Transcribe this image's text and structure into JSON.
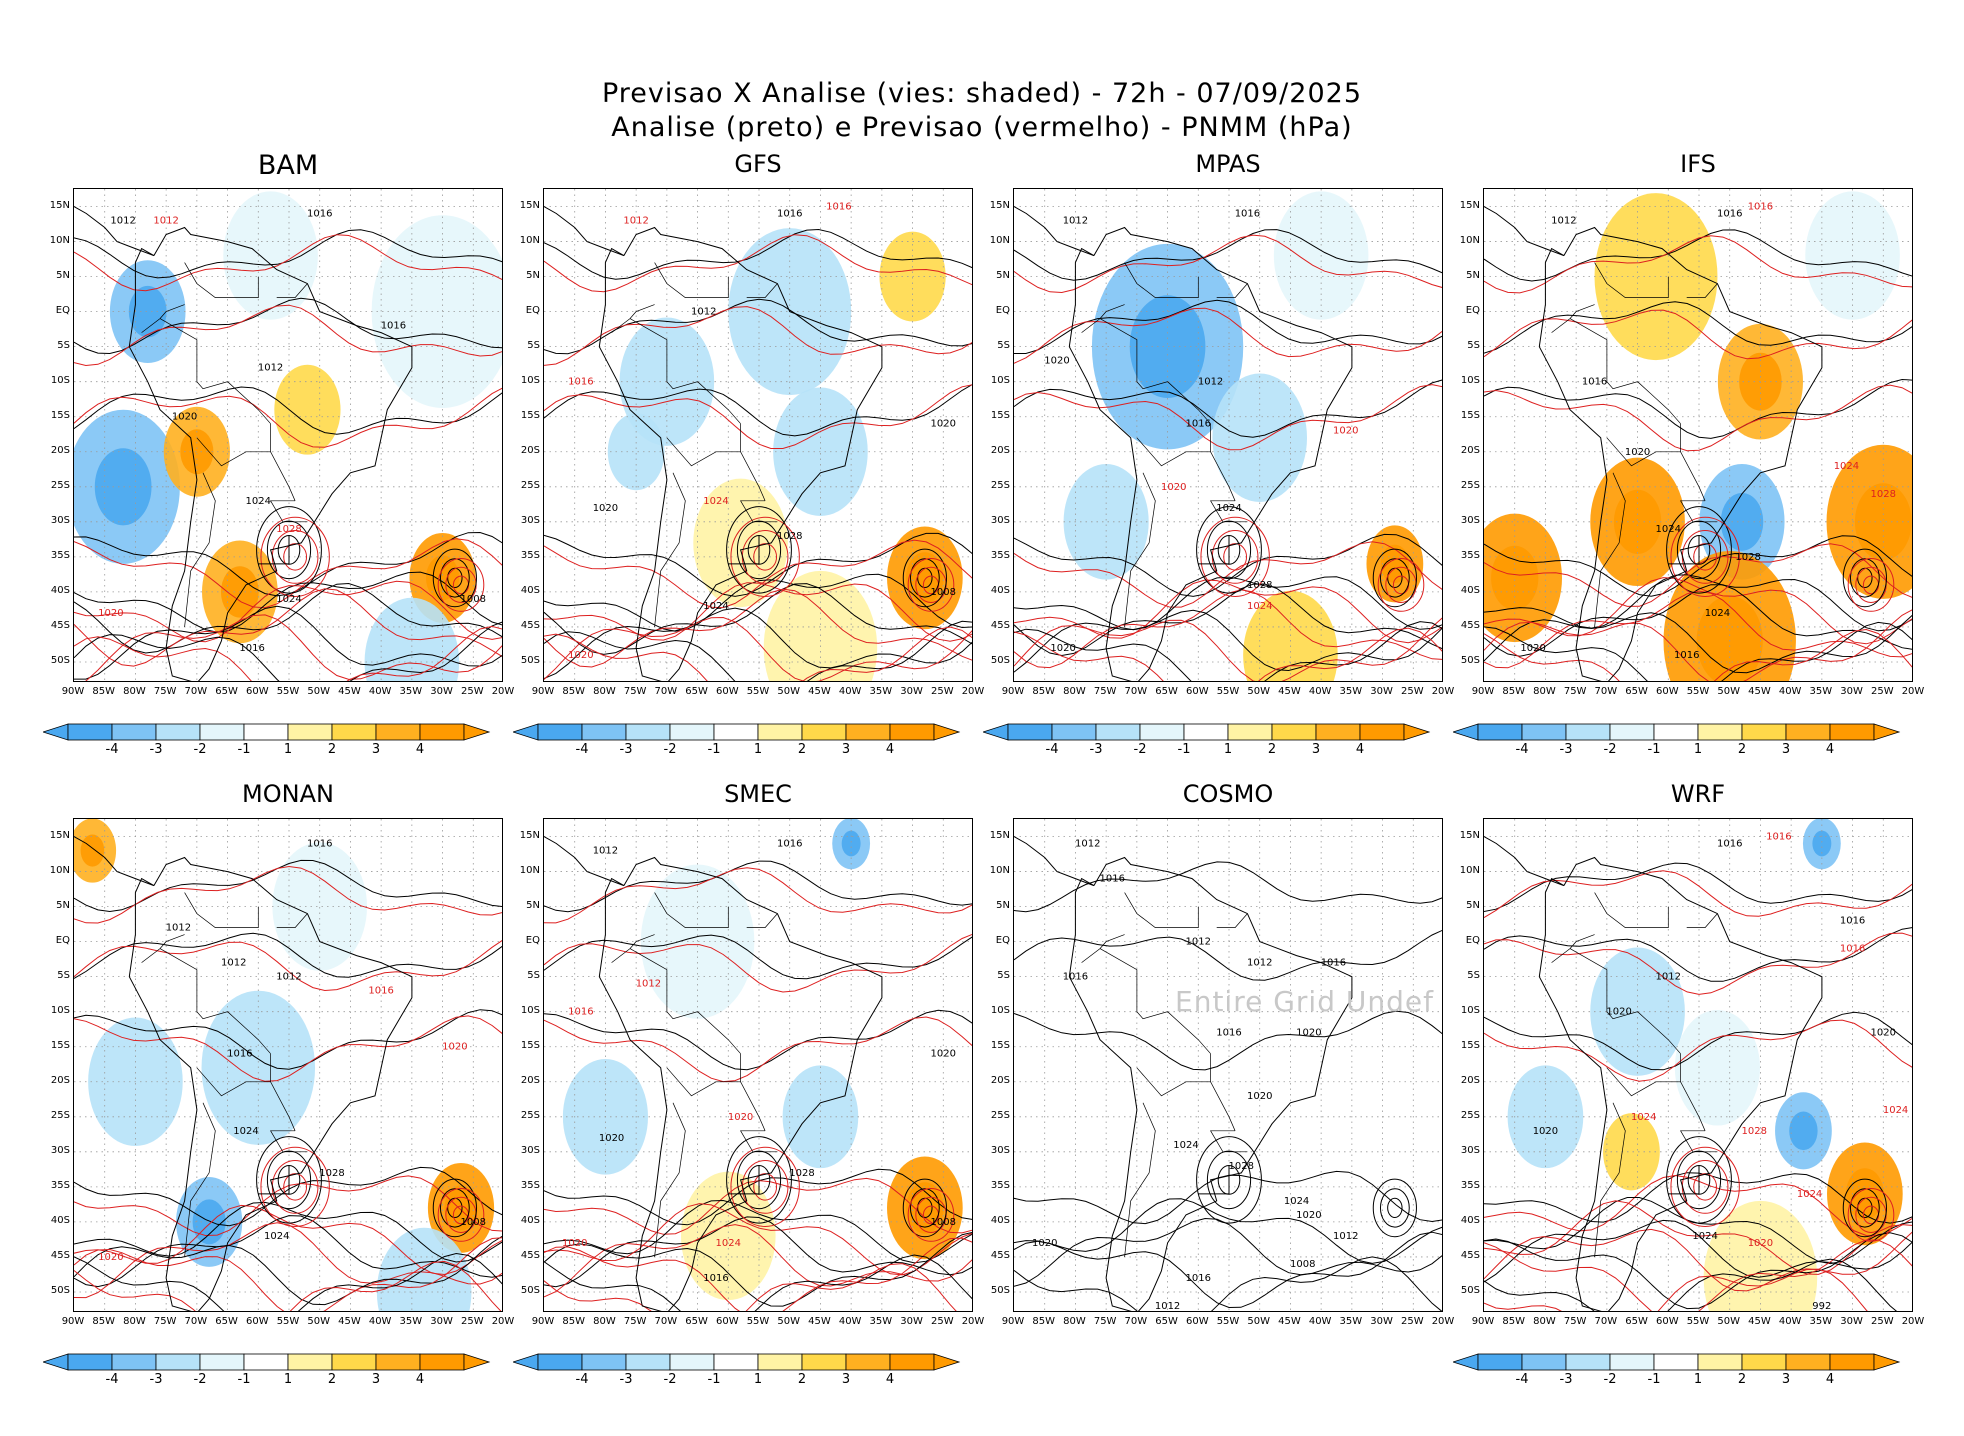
{
  "figure": {
    "title_line1": "Previsao X Analise (vies: shaded) - 72h - 07/09/2025",
    "title_line2": "Analise (preto) e Previsao (vermelho) - PNMM (hPa)"
  },
  "axes": {
    "lat_labels": [
      "15N",
      "10N",
      "5N",
      "EQ",
      "5S",
      "10S",
      "15S",
      "20S",
      "25S",
      "30S",
      "35S",
      "40S",
      "45S",
      "50S"
    ],
    "lon_labels": [
      "90W",
      "85W",
      "80W",
      "75W",
      "70W",
      "65W",
      "60W",
      "55W",
      "50W",
      "45W",
      "40W",
      "35W",
      "30W",
      "25W",
      "20W"
    ]
  },
  "colorbar": {
    "ticks": [
      "-4",
      "-3",
      "-2",
      "-1",
      "1",
      "2",
      "3",
      "4"
    ],
    "colors": [
      "#4aa8f0",
      "#7ec3f5",
      "#b6e2f8",
      "#e4f6fb",
      "#ffffff",
      "#fff3a5",
      "#ffd94a",
      "#ffb020",
      "#ff9a00"
    ]
  },
  "line_colors": {
    "analysis": "#000000",
    "forecast": "#dd2020"
  },
  "undef_text": "Entire Grid Undef",
  "panels": [
    {
      "name": "BAM",
      "has_shading": true,
      "blobs": [
        {
          "lon": -82,
          "lat": -25,
          "r": 0.12,
          "level": -3
        },
        {
          "lon": -78,
          "lat": 0,
          "r": 0.08,
          "level": -3
        },
        {
          "lon": -58,
          "lat": 8,
          "r": 0.1,
          "level": -1
        },
        {
          "lon": -30,
          "lat": 0,
          "r": 0.15,
          "level": -1
        },
        {
          "lon": -70,
          "lat": -20,
          "r": 0.07,
          "level": 3
        },
        {
          "lon": -52,
          "lat": -14,
          "r": 0.07,
          "level": 2
        },
        {
          "lon": -63,
          "lat": -40,
          "r": 0.08,
          "level": 3
        },
        {
          "lon": -30,
          "lat": -38,
          "r": 0.07,
          "level": 4
        },
        {
          "lon": -35,
          "lat": -50,
          "r": 0.1,
          "level": -2
        }
      ],
      "labels": [
        {
          "lon": -82,
          "lat": 13,
          "text": "1012",
          "line": "analysis"
        },
        {
          "lon": -75,
          "lat": 13,
          "text": "1012",
          "line": "forecast"
        },
        {
          "lon": -50,
          "lat": 14,
          "text": "1016",
          "line": "analysis"
        },
        {
          "lon": -58,
          "lat": -8,
          "text": "1012",
          "line": "analysis"
        },
        {
          "lon": -72,
          "lat": -15,
          "text": "1020",
          "line": "analysis"
        },
        {
          "lon": -60,
          "lat": -27,
          "text": "1024",
          "line": "analysis"
        },
        {
          "lon": -55,
          "lat": -31,
          "text": "1028",
          "line": "forecast"
        },
        {
          "lon": -55,
          "lat": -41,
          "text": "1024",
          "line": "analysis"
        },
        {
          "lon": -61,
          "lat": -48,
          "text": "1016",
          "line": "analysis"
        },
        {
          "lon": -84,
          "lat": -43,
          "text": "1020",
          "line": "forecast"
        },
        {
          "lon": -25,
          "lat": -41,
          "text": "1008",
          "line": "analysis"
        },
        {
          "lon": -38,
          "lat": -2,
          "text": "1016",
          "line": "analysis"
        }
      ]
    },
    {
      "name": "GFS",
      "has_shading": true,
      "blobs": [
        {
          "lon": -70,
          "lat": -10,
          "r": 0.1,
          "level": -2
        },
        {
          "lon": -50,
          "lat": 0,
          "r": 0.13,
          "level": -2
        },
        {
          "lon": -45,
          "lat": -20,
          "r": 0.1,
          "level": -2
        },
        {
          "lon": -75,
          "lat": -20,
          "r": 0.06,
          "level": -2
        },
        {
          "lon": -30,
          "lat": 5,
          "r": 0.07,
          "level": 2
        },
        {
          "lon": -58,
          "lat": -33,
          "r": 0.1,
          "level": 1
        },
        {
          "lon": -28,
          "lat": -38,
          "r": 0.08,
          "level": 4
        },
        {
          "lon": -45,
          "lat": -48,
          "r": 0.12,
          "level": 1
        }
      ],
      "labels": [
        {
          "lon": -75,
          "lat": 13,
          "text": "1012",
          "line": "forecast"
        },
        {
          "lon": -50,
          "lat": 14,
          "text": "1016",
          "line": "analysis"
        },
        {
          "lon": -42,
          "lat": 15,
          "text": "1016",
          "line": "forecast"
        },
        {
          "lon": -64,
          "lat": 0,
          "text": "1012",
          "line": "analysis"
        },
        {
          "lon": -84,
          "lat": -10,
          "text": "1016",
          "line": "forecast"
        },
        {
          "lon": -80,
          "lat": -28,
          "text": "1020",
          "line": "analysis"
        },
        {
          "lon": -62,
          "lat": -27,
          "text": "1024",
          "line": "forecast"
        },
        {
          "lon": -50,
          "lat": -32,
          "text": "1028",
          "line": "analysis"
        },
        {
          "lon": -62,
          "lat": -42,
          "text": "1024",
          "line": "analysis"
        },
        {
          "lon": -25,
          "lat": -40,
          "text": "1008",
          "line": "analysis"
        },
        {
          "lon": -25,
          "lat": -16,
          "text": "1020",
          "line": "analysis"
        },
        {
          "lon": -84,
          "lat": -49,
          "text": "1020",
          "line": "forecast"
        }
      ]
    },
    {
      "name": "MPAS",
      "has_shading": true,
      "blobs": [
        {
          "lon": -65,
          "lat": -5,
          "r": 0.16,
          "level": -3
        },
        {
          "lon": -50,
          "lat": -18,
          "r": 0.1,
          "level": -2
        },
        {
          "lon": -75,
          "lat": -30,
          "r": 0.09,
          "level": -2
        },
        {
          "lon": -40,
          "lat": 8,
          "r": 0.1,
          "level": -1
        },
        {
          "lon": -28,
          "lat": -36,
          "r": 0.06,
          "level": 4
        },
        {
          "lon": -45,
          "lat": -49,
          "r": 0.1,
          "level": 2
        }
      ],
      "labels": [
        {
          "lon": -80,
          "lat": 13,
          "text": "1012",
          "line": "analysis"
        },
        {
          "lon": -52,
          "lat": 14,
          "text": "1016",
          "line": "analysis"
        },
        {
          "lon": -83,
          "lat": -7,
          "text": "1020",
          "line": "analysis"
        },
        {
          "lon": -58,
          "lat": -10,
          "text": "1012",
          "line": "analysis"
        },
        {
          "lon": -60,
          "lat": -16,
          "text": "1016",
          "line": "analysis"
        },
        {
          "lon": -64,
          "lat": -25,
          "text": "1020",
          "line": "forecast"
        },
        {
          "lon": -55,
          "lat": -28,
          "text": "1024",
          "line": "analysis"
        },
        {
          "lon": -50,
          "lat": -39,
          "text": "1028",
          "line": "analysis"
        },
        {
          "lon": -50,
          "lat": -42,
          "text": "1024",
          "line": "forecast"
        },
        {
          "lon": -36,
          "lat": -17,
          "text": "1020",
          "line": "forecast"
        },
        {
          "lon": -82,
          "lat": -48,
          "text": "1020",
          "line": "analysis"
        }
      ]
    },
    {
      "name": "IFS",
      "has_shading": true,
      "blobs": [
        {
          "lon": -62,
          "lat": 5,
          "r": 0.13,
          "level": 2
        },
        {
          "lon": -45,
          "lat": -10,
          "r": 0.09,
          "level": 3
        },
        {
          "lon": -65,
          "lat": -30,
          "r": 0.1,
          "level": 4
        },
        {
          "lon": -85,
          "lat": -38,
          "r": 0.1,
          "level": 4
        },
        {
          "lon": -48,
          "lat": -30,
          "r": 0.09,
          "level": -3
        },
        {
          "lon": -25,
          "lat": -30,
          "r": 0.12,
          "level": 4
        },
        {
          "lon": -50,
          "lat": -47,
          "r": 0.14,
          "level": 4
        },
        {
          "lon": -30,
          "lat": 8,
          "r": 0.1,
          "level": -1
        }
      ],
      "labels": [
        {
          "lon": -77,
          "lat": 13,
          "text": "1012",
          "line": "analysis"
        },
        {
          "lon": -50,
          "lat": 14,
          "text": "1016",
          "line": "analysis"
        },
        {
          "lon": -45,
          "lat": 15,
          "text": "1016",
          "line": "forecast"
        },
        {
          "lon": -72,
          "lat": -10,
          "text": "1016",
          "line": "analysis"
        },
        {
          "lon": -65,
          "lat": -20,
          "text": "1020",
          "line": "analysis"
        },
        {
          "lon": -60,
          "lat": -31,
          "text": "1024",
          "line": "analysis"
        },
        {
          "lon": -47,
          "lat": -35,
          "text": "1028",
          "line": "analysis"
        },
        {
          "lon": -25,
          "lat": -26,
          "text": "1028",
          "line": "forecast"
        },
        {
          "lon": -31,
          "lat": -22,
          "text": "1024",
          "line": "forecast"
        },
        {
          "lon": -52,
          "lat": -43,
          "text": "1024",
          "line": "analysis"
        },
        {
          "lon": -57,
          "lat": -49,
          "text": "1016",
          "line": "analysis"
        },
        {
          "lon": -82,
          "lat": -48,
          "text": "1020",
          "line": "analysis"
        }
      ]
    },
    {
      "name": "MONAN",
      "has_shading": true,
      "blobs": [
        {
          "lon": -80,
          "lat": -20,
          "r": 0.1,
          "level": -2
        },
        {
          "lon": -60,
          "lat": -18,
          "r": 0.12,
          "level": -2
        },
        {
          "lon": -68,
          "lat": -40,
          "r": 0.07,
          "level": -3
        },
        {
          "lon": -87,
          "lat": 13,
          "r": 0.05,
          "level": 3
        },
        {
          "lon": -27,
          "lat": -38,
          "r": 0.07,
          "level": 4
        },
        {
          "lon": -33,
          "lat": -50,
          "r": 0.1,
          "level": -2
        },
        {
          "lon": -50,
          "lat": 5,
          "r": 0.1,
          "level": -1
        }
      ],
      "labels": [
        {
          "lon": -50,
          "lat": 14,
          "text": "1016",
          "line": "analysis"
        },
        {
          "lon": -73,
          "lat": 2,
          "text": "1012",
          "line": "analysis"
        },
        {
          "lon": -64,
          "lat": -3,
          "text": "1012",
          "line": "analysis"
        },
        {
          "lon": -55,
          "lat": -5,
          "text": "1012",
          "line": "analysis"
        },
        {
          "lon": -40,
          "lat": -7,
          "text": "1016",
          "line": "forecast"
        },
        {
          "lon": -63,
          "lat": -16,
          "text": "1016",
          "line": "analysis"
        },
        {
          "lon": -62,
          "lat": -27,
          "text": "1024",
          "line": "analysis"
        },
        {
          "lon": -48,
          "lat": -33,
          "text": "1028",
          "line": "analysis"
        },
        {
          "lon": -57,
          "lat": -42,
          "text": "1024",
          "line": "analysis"
        },
        {
          "lon": -84,
          "lat": -45,
          "text": "1020",
          "line": "forecast"
        },
        {
          "lon": -25,
          "lat": -40,
          "text": "1008",
          "line": "analysis"
        },
        {
          "lon": -28,
          "lat": -15,
          "text": "1020",
          "line": "forecast"
        }
      ]
    },
    {
      "name": "SMEC",
      "has_shading": true,
      "blobs": [
        {
          "lon": -65,
          "lat": 0,
          "r": 0.12,
          "level": -1
        },
        {
          "lon": -80,
          "lat": -25,
          "r": 0.09,
          "level": -2
        },
        {
          "lon": -45,
          "lat": -25,
          "r": 0.08,
          "level": -2
        },
        {
          "lon": -28,
          "lat": -38,
          "r": 0.08,
          "level": 4
        },
        {
          "lon": -60,
          "lat": -42,
          "r": 0.1,
          "level": 1
        },
        {
          "lon": -40,
          "lat": 14,
          "r": 0.04,
          "level": -3
        }
      ],
      "labels": [
        {
          "lon": -80,
          "lat": 13,
          "text": "1012",
          "line": "analysis"
        },
        {
          "lon": -50,
          "lat": 14,
          "text": "1016",
          "line": "analysis"
        },
        {
          "lon": -73,
          "lat": -6,
          "text": "1012",
          "line": "forecast"
        },
        {
          "lon": -84,
          "lat": -10,
          "text": "1016",
          "line": "forecast"
        },
        {
          "lon": -79,
          "lat": -28,
          "text": "1020",
          "line": "analysis"
        },
        {
          "lon": -58,
          "lat": -25,
          "text": "1020",
          "line": "forecast"
        },
        {
          "lon": -48,
          "lat": -33,
          "text": "1028",
          "line": "analysis"
        },
        {
          "lon": -60,
          "lat": -43,
          "text": "1024",
          "line": "forecast"
        },
        {
          "lon": -62,
          "lat": -48,
          "text": "1016",
          "line": "analysis"
        },
        {
          "lon": -25,
          "lat": -40,
          "text": "1008",
          "line": "analysis"
        },
        {
          "lon": -25,
          "lat": -16,
          "text": "1020",
          "line": "analysis"
        },
        {
          "lon": -85,
          "lat": -43,
          "text": "1020",
          "line": "forecast"
        }
      ]
    },
    {
      "name": "COSMO",
      "has_shading": false,
      "blobs": [],
      "labels": [
        {
          "lon": -78,
          "lat": 14,
          "text": "1012",
          "line": "analysis"
        },
        {
          "lon": -74,
          "lat": 9,
          "text": "1016",
          "line": "analysis"
        },
        {
          "lon": -60,
          "lat": 0,
          "text": "1012",
          "line": "analysis"
        },
        {
          "lon": -50,
          "lat": -3,
          "text": "1012",
          "line": "analysis"
        },
        {
          "lon": -38,
          "lat": -3,
          "text": "1016",
          "line": "analysis"
        },
        {
          "lon": -80,
          "lat": -5,
          "text": "1016",
          "line": "analysis"
        },
        {
          "lon": -55,
          "lat": -13,
          "text": "1016",
          "line": "analysis"
        },
        {
          "lon": -42,
          "lat": -13,
          "text": "1020",
          "line": "analysis"
        },
        {
          "lon": -50,
          "lat": -22,
          "text": "1020",
          "line": "analysis"
        },
        {
          "lon": -62,
          "lat": -29,
          "text": "1024",
          "line": "analysis"
        },
        {
          "lon": -53,
          "lat": -32,
          "text": "1028",
          "line": "analysis"
        },
        {
          "lon": -44,
          "lat": -37,
          "text": "1024",
          "line": "analysis"
        },
        {
          "lon": -42,
          "lat": -39,
          "text": "1020",
          "line": "analysis"
        },
        {
          "lon": -36,
          "lat": -42,
          "text": "1012",
          "line": "analysis"
        },
        {
          "lon": -43,
          "lat": -46,
          "text": "1008",
          "line": "analysis"
        },
        {
          "lon": -60,
          "lat": -48,
          "text": "1016",
          "line": "analysis"
        },
        {
          "lon": -85,
          "lat": -43,
          "text": "1020",
          "line": "analysis"
        },
        {
          "lon": -65,
          "lat": -52,
          "text": "1012",
          "line": "analysis"
        }
      ]
    },
    {
      "name": "WRF",
      "has_shading": true,
      "blobs": [
        {
          "lon": -65,
          "lat": -10,
          "r": 0.1,
          "level": -2
        },
        {
          "lon": -80,
          "lat": -25,
          "r": 0.08,
          "level": -2
        },
        {
          "lon": -52,
          "lat": -18,
          "r": 0.09,
          "level": -1
        },
        {
          "lon": -38,
          "lat": -27,
          "r": 0.06,
          "level": -3
        },
        {
          "lon": -28,
          "lat": -36,
          "r": 0.08,
          "level": 4
        },
        {
          "lon": -66,
          "lat": -30,
          "r": 0.06,
          "level": 2
        },
        {
          "lon": -45,
          "lat": -48,
          "r": 0.12,
          "level": 1
        },
        {
          "lon": -35,
          "lat": 14,
          "r": 0.04,
          "level": -3
        }
      ],
      "labels": [
        {
          "lon": -50,
          "lat": 14,
          "text": "1016",
          "line": "analysis"
        },
        {
          "lon": -42,
          "lat": 15,
          "text": "1016",
          "line": "forecast"
        },
        {
          "lon": -30,
          "lat": 3,
          "text": "1016",
          "line": "analysis"
        },
        {
          "lon": -30,
          "lat": -1,
          "text": "1016",
          "line": "forecast"
        },
        {
          "lon": -68,
          "lat": -10,
          "text": "1020",
          "line": "analysis"
        },
        {
          "lon": -60,
          "lat": -5,
          "text": "1012",
          "line": "analysis"
        },
        {
          "lon": -80,
          "lat": -27,
          "text": "1020",
          "line": "analysis"
        },
        {
          "lon": -64,
          "lat": -25,
          "text": "1024",
          "line": "forecast"
        },
        {
          "lon": -46,
          "lat": -27,
          "text": "1028",
          "line": "forecast"
        },
        {
          "lon": -37,
          "lat": -36,
          "text": "1024",
          "line": "forecast"
        },
        {
          "lon": -54,
          "lat": -42,
          "text": "1024",
          "line": "analysis"
        },
        {
          "lon": -45,
          "lat": -43,
          "text": "1020",
          "line": "forecast"
        },
        {
          "lon": -35,
          "lat": -52,
          "text": "992",
          "line": "analysis"
        },
        {
          "lon": -23,
          "lat": -24,
          "text": "1024",
          "line": "forecast"
        },
        {
          "lon": -25,
          "lat": -13,
          "text": "1020",
          "line": "analysis"
        }
      ]
    }
  ]
}
